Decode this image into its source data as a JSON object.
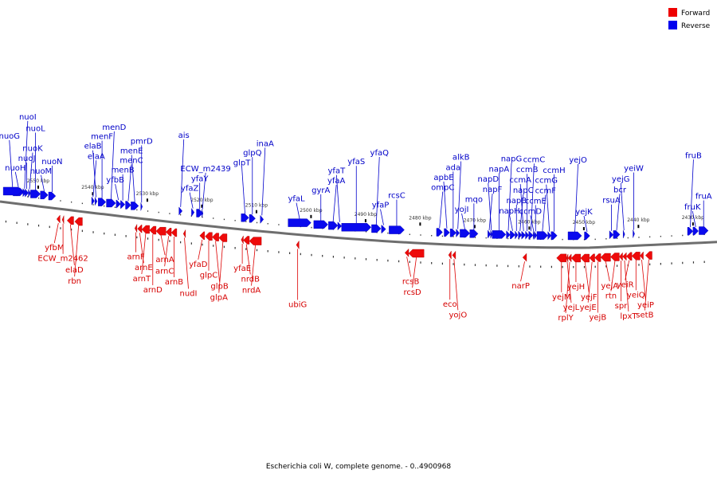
{
  "legend": [
    {
      "label": "Forward",
      "color": "#ee0000"
    },
    {
      "label": "Reverse",
      "color": "#0000ee"
    }
  ],
  "caption": "Escherichia coli W, complete genome. - 0..4900968",
  "kbp_ticks": [
    {
      "label": "2550 kbp",
      "pos": 2550
    },
    {
      "label": "2540 kbp",
      "pos": 2540
    },
    {
      "label": "2530 kbp",
      "pos": 2530
    },
    {
      "label": "2520 kbp",
      "pos": 2520
    },
    {
      "label": "2510 kbp",
      "pos": 2510
    },
    {
      "label": "2500 kbp",
      "pos": 2500
    },
    {
      "label": "2490 kbp",
      "pos": 2490
    },
    {
      "label": "2480 kbp",
      "pos": 2480
    },
    {
      "label": "2470 kbp",
      "pos": 2470
    },
    {
      "label": "2460 kbp",
      "pos": 2460
    },
    {
      "label": "2450 kbp",
      "pos": 2450
    },
    {
      "label": "2440 kbp",
      "pos": 2440
    },
    {
      "label": "2430 kbp",
      "pos": 2430
    }
  ],
  "reverse_genes": [
    {
      "name": "nuoH",
      "start": 2554.6,
      "end": 2552.6
    },
    {
      "name": "nuoJ",
      "start": 2552.4,
      "end": 2551.8
    },
    {
      "name": "nuoK",
      "start": 2551.8,
      "end": 2551.4
    },
    {
      "name": "nuoG",
      "start": 2556.4,
      "end": 2553.0
    },
    {
      "name": "nuoL",
      "start": 2551.4,
      "end": 2549.6
    },
    {
      "name": "nuoI",
      "start": 2552.8,
      "end": 2552.2
    },
    {
      "name": "nuoM",
      "start": 2549.6,
      "end": 2548.2
    },
    {
      "name": "nuoN",
      "start": 2548.1,
      "end": 2546.8
    },
    {
      "name": "elaA",
      "start": 2540.2,
      "end": 2539.7
    },
    {
      "name": "elaB",
      "start": 2539.6,
      "end": 2539.2
    },
    {
      "name": "menF",
      "start": 2539.0,
      "end": 2537.6
    },
    {
      "name": "menD",
      "start": 2537.5,
      "end": 2535.8
    },
    {
      "name": "yfbB",
      "start": 2535.7,
      "end": 2534.9
    },
    {
      "name": "menB",
      "start": 2534.9,
      "end": 2534.1
    },
    {
      "name": "menC",
      "start": 2534.0,
      "end": 2533.0
    },
    {
      "name": "menE",
      "start": 2533.0,
      "end": 2531.6
    },
    {
      "name": "pmrD",
      "start": 2531.2,
      "end": 2530.9
    },
    {
      "name": "ais",
      "start": 2524.2,
      "end": 2523.6
    },
    {
      "name": "yfaZ",
      "start": 2521.9,
      "end": 2521.4
    },
    {
      "name": "yfaY",
      "start": 2521.0,
      "end": 2519.8
    },
    {
      "name": "ECW_m2439",
      "start": 2520.0,
      "end": 2519.8
    },
    {
      "name": "glpT",
      "start": 2512.8,
      "end": 2511.4
    },
    {
      "name": "glpQ",
      "start": 2511.3,
      "end": 2510.2
    },
    {
      "name": "inaA",
      "start": 2509.3,
      "end": 2508.7
    },
    {
      "name": "yfaL",
      "start": 2504.2,
      "end": 2500.0
    },
    {
      "name": "gyrA",
      "start": 2499.5,
      "end": 2496.9
    },
    {
      "name": "yfaA",
      "start": 2496.8,
      "end": 2495.1
    },
    {
      "name": "yfaT",
      "start": 2495.1,
      "end": 2494.4
    },
    {
      "name": "yfaS",
      "start": 2494.4,
      "end": 2489.0
    },
    {
      "name": "yfaQ",
      "start": 2488.9,
      "end": 2487.2
    },
    {
      "name": "yfaP",
      "start": 2487.1,
      "end": 2486.3
    },
    {
      "name": "rcsC",
      "start": 2485.7,
      "end": 2482.9
    },
    {
      "name": "ompC",
      "start": 2477.0,
      "end": 2475.9
    },
    {
      "name": "apbE",
      "start": 2475.6,
      "end": 2474.6
    },
    {
      "name": "ada",
      "start": 2474.5,
      "end": 2473.4
    },
    {
      "name": "alkB",
      "start": 2473.4,
      "end": 2472.8
    },
    {
      "name": "yojI",
      "start": 2472.7,
      "end": 2470.9
    },
    {
      "name": "mqo",
      "start": 2470.9,
      "end": 2469.4
    },
    {
      "name": "napF",
      "start": 2467.6,
      "end": 2467.1
    },
    {
      "name": "napD",
      "start": 2467.1,
      "end": 2466.8
    },
    {
      "name": "napA",
      "start": 2466.8,
      "end": 2464.3
    },
    {
      "name": "napG",
      "start": 2464.2,
      "end": 2463.5
    },
    {
      "name": "napH",
      "start": 2463.5,
      "end": 2462.6
    },
    {
      "name": "napB",
      "start": 2462.6,
      "end": 2462.1
    },
    {
      "name": "napC",
      "start": 2462.0,
      "end": 2461.4
    },
    {
      "name": "ccmA",
      "start": 2461.4,
      "end": 2460.7
    },
    {
      "name": "ccmB",
      "start": 2460.7,
      "end": 2460.1
    },
    {
      "name": "ccmC",
      "start": 2460.1,
      "end": 2459.3
    },
    {
      "name": "ccmD",
      "start": 2459.3,
      "end": 2459.1
    },
    {
      "name": "ccmE",
      "start": 2459.1,
      "end": 2458.6
    },
    {
      "name": "ccmF",
      "start": 2458.6,
      "end": 2456.6
    },
    {
      "name": "ccmG",
      "start": 2456.6,
      "end": 2456.0
    },
    {
      "name": "ccmH",
      "start": 2456.0,
      "end": 2454.9
    },
    {
      "name": "yejO",
      "start": 2452.9,
      "end": 2450.4
    },
    {
      "name": "yejK",
      "start": 2449.9,
      "end": 2448.9
    },
    {
      "name": "rsuA",
      "start": 2445.3,
      "end": 2444.6
    },
    {
      "name": "bcr",
      "start": 2444.6,
      "end": 2443.4
    },
    {
      "name": "yejG",
      "start": 2442.8,
      "end": 2442.5
    },
    {
      "name": "yeiW",
      "start": 2441.0,
      "end": 2440.7
    },
    {
      "name": "fruB",
      "start": 2431.0,
      "end": 2430.0
    },
    {
      "name": "fruK",
      "start": 2430.0,
      "end": 2429.0
    },
    {
      "name": "fruA",
      "start": 2428.9,
      "end": 2427.2
    }
  ],
  "forward_genes": [
    {
      "name": "yfbM",
      "start": 2546.0,
      "end": 2546.6
    },
    {
      "name": "ECW_m2462",
      "start": 2545.3,
      "end": 2545.6
    },
    {
      "name": "elaD",
      "start": 2543.5,
      "end": 2544.7
    },
    {
      "name": "rbn",
      "start": 2541.9,
      "end": 2543.3
    },
    {
      "name": "arnF",
      "start": 2531.9,
      "end": 2532.3
    },
    {
      "name": "arnE",
      "start": 2531.0,
      "end": 2531.8
    },
    {
      "name": "arnT",
      "start": 2529.6,
      "end": 2531.0
    },
    {
      "name": "arnD",
      "start": 2528.4,
      "end": 2529.6
    },
    {
      "name": "arnA",
      "start": 2526.6,
      "end": 2528.4
    },
    {
      "name": "arnC",
      "start": 2525.6,
      "end": 2526.6
    },
    {
      "name": "arnB",
      "start": 2524.6,
      "end": 2525.6
    },
    {
      "name": "nudI",
      "start": 2523.0,
      "end": 2523.4
    },
    {
      "name": "yfaD",
      "start": 2519.5,
      "end": 2520.4
    },
    {
      "name": "glpC",
      "start": 2518.1,
      "end": 2519.4
    },
    {
      "name": "glpB",
      "start": 2516.9,
      "end": 2518.1
    },
    {
      "name": "glpA",
      "start": 2515.4,
      "end": 2516.9
    },
    {
      "name": "yfaE",
      "start": 2512.4,
      "end": 2512.8
    },
    {
      "name": "nrdB",
      "start": 2511.3,
      "end": 2512.4
    },
    {
      "name": "nrdA",
      "start": 2509.1,
      "end": 2511.3
    },
    {
      "name": "ubiG",
      "start": 2502.2,
      "end": 2502.7
    },
    {
      "name": "rcsB",
      "start": 2482.1,
      "end": 2482.8
    },
    {
      "name": "rcsD",
      "start": 2479.3,
      "end": 2482.1
    },
    {
      "name": "eco",
      "start": 2474.3,
      "end": 2474.8
    },
    {
      "name": "yojO",
      "start": 2473.5,
      "end": 2474.1
    },
    {
      "name": "narP",
      "start": 2460.5,
      "end": 2461.2
    },
    {
      "name": "yejM",
      "start": 2453.2,
      "end": 2455.0
    },
    {
      "name": "yejL",
      "start": 2452.9,
      "end": 2453.2
    },
    {
      "name": "rplY",
      "start": 2452.3,
      "end": 2452.9
    },
    {
      "name": "yejH",
      "start": 2450.6,
      "end": 2452.3
    },
    {
      "name": "yejF",
      "start": 2449.0,
      "end": 2450.6
    },
    {
      "name": "yejE",
      "start": 2448.0,
      "end": 2449.0
    },
    {
      "name": "yejB",
      "start": 2446.9,
      "end": 2448.0
    },
    {
      "name": "yejA",
      "start": 2445.1,
      "end": 2446.9
    },
    {
      "name": "rtn",
      "start": 2443.5,
      "end": 2445.1
    },
    {
      "name": "spr",
      "start": 2442.9,
      "end": 2443.5
    },
    {
      "name": "lpxT",
      "start": 2442.2,
      "end": 2442.9
    },
    {
      "name": "yeiR",
      "start": 2441.2,
      "end": 2442.2
    },
    {
      "name": "yeiQ",
      "start": 2439.7,
      "end": 2441.2
    },
    {
      "name": "yeiP",
      "start": 2439.1,
      "end": 2439.7
    },
    {
      "name": "setB",
      "start": 2437.5,
      "end": 2438.7
    }
  ]
}
